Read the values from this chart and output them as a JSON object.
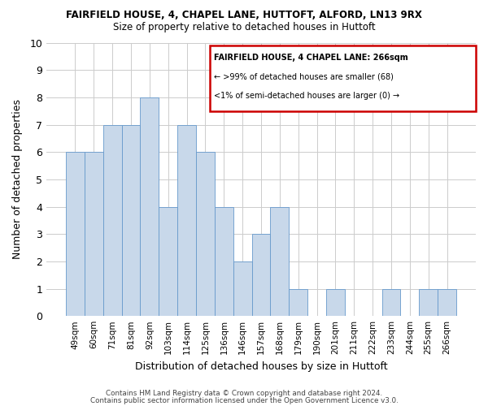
{
  "title": "FAIRFIELD HOUSE, 4, CHAPEL LANE, HUTTOFT, ALFORD, LN13 9RX",
  "subtitle": "Size of property relative to detached houses in Huttoft",
  "xlabel": "Distribution of detached houses by size in Huttoft",
  "ylabel": "Number of detached properties",
  "bar_labels": [
    "49sqm",
    "60sqm",
    "71sqm",
    "81sqm",
    "92sqm",
    "103sqm",
    "114sqm",
    "125sqm",
    "136sqm",
    "146sqm",
    "157sqm",
    "168sqm",
    "179sqm",
    "190sqm",
    "201sqm",
    "211sqm",
    "222sqm",
    "233sqm",
    "244sqm",
    "255sqm",
    "266sqm"
  ],
  "bar_values": [
    6,
    6,
    7,
    7,
    8,
    4,
    7,
    6,
    4,
    2,
    3,
    4,
    1,
    0,
    1,
    0,
    0,
    1,
    0,
    1,
    1
  ],
  "bar_color": "#c8d8ea",
  "bar_edge_color": "#6699cc",
  "ylim": [
    0,
    10
  ],
  "yticks": [
    0,
    1,
    2,
    3,
    4,
    5,
    6,
    7,
    8,
    9,
    10
  ],
  "grid_color": "#cccccc",
  "background_color": "#ffffff",
  "legend_title": "FAIRFIELD HOUSE, 4 CHAPEL LANE: 266sqm",
  "legend_line1": "← >99% of detached houses are smaller (68)",
  "legend_line2": "<1% of semi-detached houses are larger (0) →",
  "legend_box_edge": "#cc0000",
  "footer_line1": "Contains HM Land Registry data © Crown copyright and database right 2024.",
  "footer_line2": "Contains public sector information licensed under the Open Government Licence v3.0."
}
